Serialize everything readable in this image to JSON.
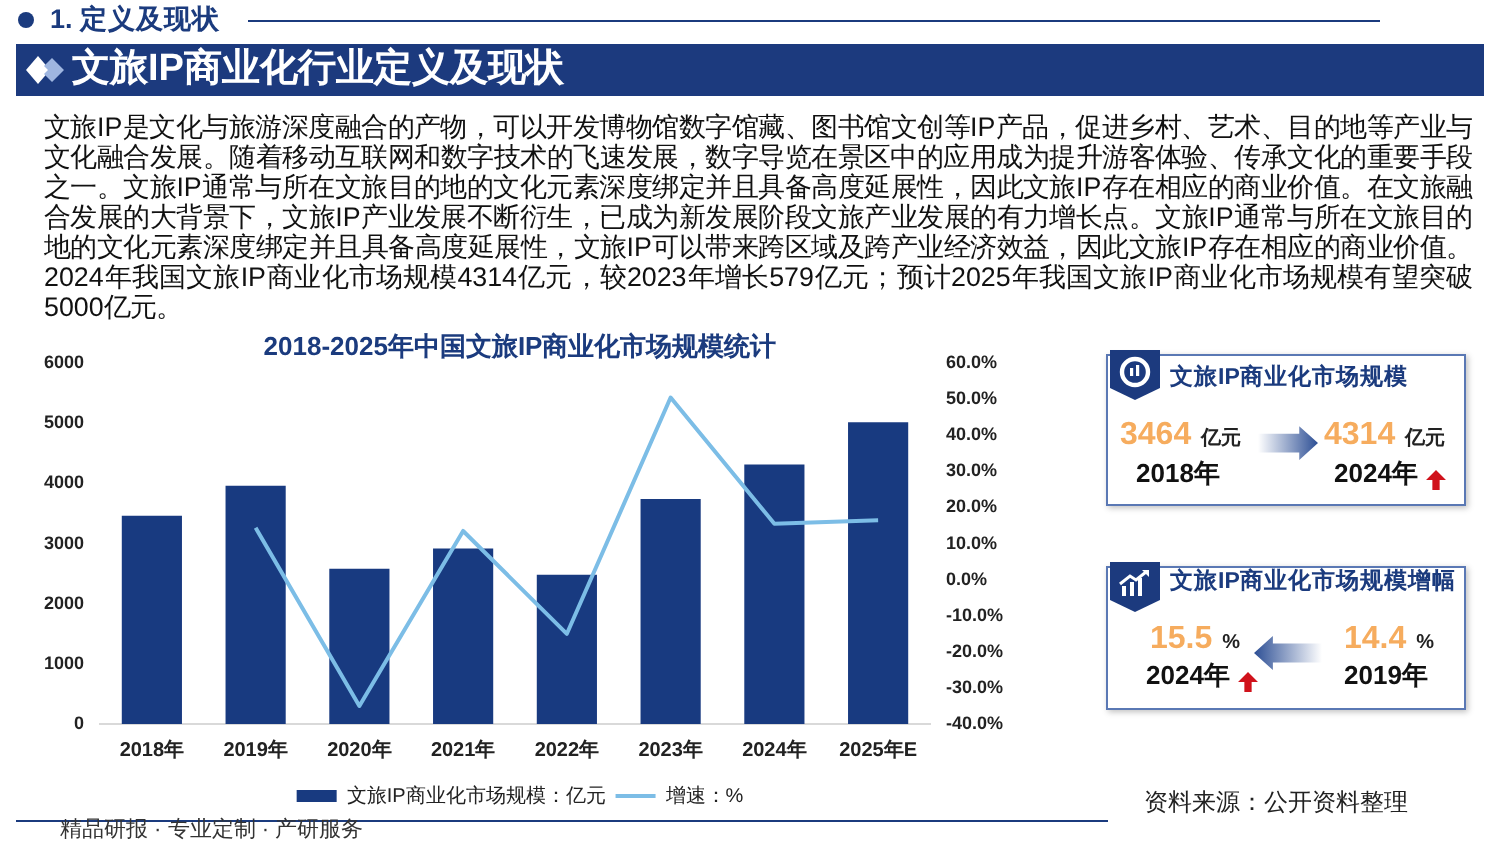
{
  "chart_data": [
    {
      "type": "bar",
      "title": "2018-2025年中国文旅IP商业化市场规模统计",
      "categories": [
        "2018年",
        "2019年",
        "2020年",
        "2021年",
        "2022年",
        "2023年",
        "2024年",
        "2025年E"
      ],
      "series": [
        {
          "name": "文旅IP商业化市场规模：亿元",
          "color": "#183a80",
          "values": [
            3464,
            3960,
            2580,
            2920,
            2480,
            3740,
            4314,
            5020
          ]
        },
        {
          "name": "增速：%",
          "type": "line",
          "axis": "y2",
          "color": "#7cbde6",
          "values": [
            null,
            14.4,
            -35,
            13.5,
            -15,
            50.5,
            15.5,
            16.5
          ]
        }
      ],
      "ylim": [
        0,
        6000
      ],
      "yticks": [
        0,
        1000,
        2000,
        3000,
        4000,
        5000,
        6000
      ],
      "y2lim": [
        -40,
        60
      ],
      "y2ticks": [
        {
          "value": -40,
          "label": "-40.0%"
        },
        {
          "value": -30,
          "label": "-30.0%"
        },
        {
          "value": -20,
          "label": "-20.0%"
        },
        {
          "value": -10,
          "label": "-10.0%"
        },
        {
          "value": 0,
          "label": "0.0%"
        },
        {
          "value": 10,
          "label": "10.0%"
        },
        {
          "value": 20,
          "label": "20.0%"
        },
        {
          "value": 30,
          "label": "30.0%"
        },
        {
          "value": 40,
          "label": "40.0%"
        },
        {
          "value": 50,
          "label": "50.0%"
        },
        {
          "value": 60,
          "label": "60.0%"
        }
      ],
      "legend": "bottom",
      "marker": "none",
      "annotations": [
        "1. 定义及现状",
        "文旅IP商业化行业定义及现状",
        "文旅IP是文化与旅游深度融合的产物，可以开发博物馆数字馆藏、图书馆文创等IP产品，促进乡村、艺术、目的地等产业与文化融合发展。随着移动互联网和数字技术的飞速发展，数字导览在景区中的应用成为提升游客体验、传承文化的重要手段之一。文旅IP通常与所在文旅目的地的文化元素深度绑定并且具备高度延展性，因此文旅IP存在相应的商业价值。在文旅融合发展的大背景下，文旅IP产业发展不断衍生，已成为新发展阶段文旅产业发展的有力增长点。文旅IP通常与所在文旅目的地的文化元素深度绑定并且具备高度延展性，文旅IP可以带来跨区域及跨产业经济效益，因此文旅IP存在相应的商业价值。2024年我国文旅IP商业化市场规模4314亿元，较2023年增长579亿元；预计2025年我国文旅IP商业化市场规模有望突破5000亿元。",
        "资料来源：公开资料整理",
        "精品研报 · 专业定制 · 产研服务"
      ]
    },
    {
      "type": "other",
      "title": "文旅IP商业化市场规模",
      "annotations": [
        "3464",
        "亿元",
        "2018年",
        "4314",
        "亿元",
        "2024年"
      ]
    },
    {
      "type": "other",
      "title": "文旅IP商业化市场规模增幅",
      "annotations": [
        "15.5",
        "%",
        "2024年",
        "14.4",
        "%",
        "2019年"
      ]
    }
  ]
}
